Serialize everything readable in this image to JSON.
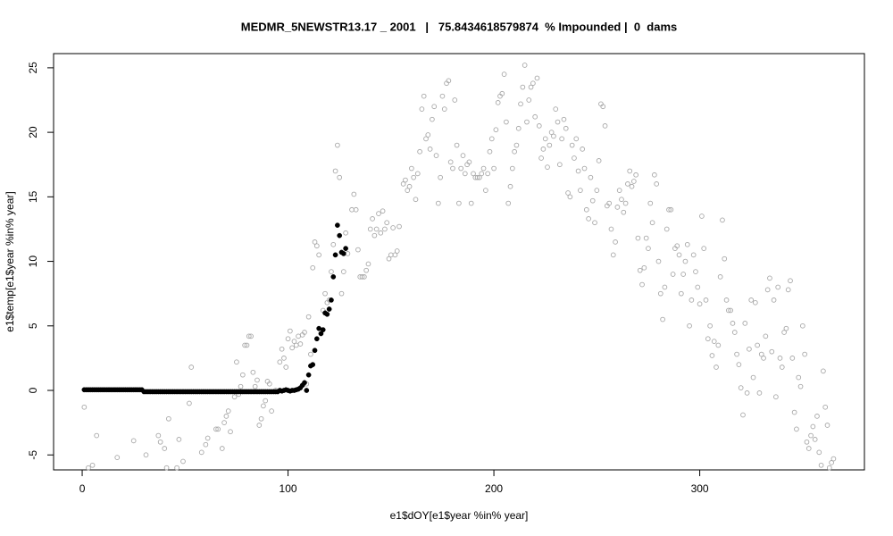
{
  "chart_data": {
    "type": "scatter",
    "title": "MEDMR_5NEWSTR13.17 _ 2001   |   75.8434618579874  % Impounded |  0  dams",
    "xlabel": "e1$dOY[e1$year %in% year]",
    "ylabel": "e1$temp[e1$year %in% year]",
    "xlim": [
      -13.9,
      380
    ],
    "ylim": [
      -6.16,
      26.1
    ],
    "xticks": [
      0,
      100,
      200,
      300
    ],
    "yticks": [
      -5,
      0,
      5,
      10,
      15,
      20,
      25
    ],
    "grid": false,
    "series": [
      {
        "color": "#a8a8a8",
        "marker": "open",
        "x": [
          1,
          3,
          5,
          7,
          17,
          25,
          31,
          37,
          38,
          40,
          41,
          42,
          46,
          47,
          49,
          52,
          53,
          58,
          60,
          61,
          65,
          66,
          68,
          69,
          70,
          71,
          72,
          74,
          75,
          76,
          77,
          78,
          79,
          80,
          81,
          82,
          83,
          84,
          85,
          86,
          87,
          88,
          89,
          90,
          91,
          92,
          94,
          96,
          97,
          98,
          99,
          100,
          101,
          102,
          103,
          104,
          105,
          106,
          107,
          108,
          109,
          110,
          111,
          112,
          113,
          114,
          115,
          117,
          118,
          119,
          120,
          121,
          122,
          123,
          124,
          125,
          126,
          127,
          128,
          129,
          131,
          132,
          133,
          134,
          135,
          136,
          137,
          138,
          139,
          140,
          141,
          142,
          143,
          144,
          145,
          146,
          147,
          148,
          149,
          150,
          151,
          152,
          153,
          154,
          156,
          157,
          158,
          159,
          160,
          161,
          162,
          163,
          164,
          165,
          166,
          167,
          168,
          169,
          170,
          171,
          172,
          173,
          174,
          175,
          176,
          177,
          178,
          179,
          180,
          181,
          182,
          183,
          184,
          185,
          186,
          187,
          188,
          189,
          190,
          191,
          192,
          193,
          194,
          195,
          196,
          197,
          198,
          199,
          200,
          201,
          202,
          203,
          204,
          205,
          206,
          207,
          208,
          209,
          210,
          211,
          212,
          213,
          214,
          215,
          216,
          217,
          218,
          219,
          220,
          221,
          222,
          223,
          224,
          225,
          226,
          227,
          228,
          229,
          230,
          231,
          232,
          233,
          234,
          235,
          236,
          237,
          238,
          239,
          240,
          241,
          242,
          243,
          244,
          245,
          246,
          247,
          248,
          249,
          250,
          251,
          252,
          253,
          254,
          255,
          256,
          257,
          258,
          259,
          260,
          261,
          262,
          263,
          264,
          265,
          266,
          267,
          268,
          269,
          270,
          271,
          272,
          273,
          274,
          275,
          276,
          277,
          278,
          279,
          280,
          281,
          282,
          283,
          284,
          285,
          286,
          287,
          288,
          289,
          290,
          291,
          292,
          293,
          294,
          295,
          296,
          297,
          298,
          299,
          300,
          301,
          302,
          303,
          304,
          305,
          306,
          307,
          308,
          309,
          310,
          311,
          312,
          313,
          314,
          315,
          316,
          317,
          318,
          319,
          320,
          321,
          322,
          323,
          324,
          325,
          326,
          327,
          328,
          329,
          330,
          331,
          332,
          333,
          334,
          335,
          336,
          337,
          338,
          339,
          340,
          341,
          342,
          343,
          344,
          345,
          346,
          347,
          348,
          349,
          350,
          351,
          352,
          353,
          354,
          355,
          356,
          357,
          358,
          359,
          360,
          361,
          362,
          363,
          364,
          365
        ],
        "values": [
          -1.3,
          -6,
          -5.8,
          -3.5,
          -5.2,
          -3.9,
          -5,
          -3.5,
          -4,
          -4.5,
          -6,
          -2.2,
          -6,
          -3.8,
          -5.5,
          -1,
          1.8,
          -4.8,
          -4.2,
          -3.7,
          -3,
          -3,
          -4.5,
          -2.5,
          -2,
          -1.6,
          -3.2,
          -0.5,
          2.2,
          -0.3,
          0.3,
          1.2,
          3.5,
          3.5,
          4.2,
          4.2,
          1.4,
          0.3,
          0.8,
          -2.7,
          -2.2,
          -1.2,
          -0.8,
          0.7,
          0.5,
          -1.6,
          0,
          2.2,
          3.2,
          2.5,
          1.8,
          4,
          4.6,
          3.3,
          3.8,
          3.5,
          4.2,
          3.6,
          4.3,
          4.5,
          0.5,
          5.7,
          2.8,
          9.5,
          11.5,
          11.2,
          10.5,
          6.2,
          7.5,
          6.8,
          7,
          9.2,
          11.3,
          17,
          19,
          16.5,
          7.5,
          9.2,
          12.2,
          10.6,
          14,
          15.2,
          14,
          10.9,
          8.8,
          8.8,
          8.8,
          9.3,
          9.8,
          12.5,
          13.3,
          12,
          12.5,
          13.7,
          12.2,
          13.9,
          12.5,
          13,
          10.2,
          10.5,
          12.6,
          10.5,
          10.8,
          12.7,
          16,
          16.3,
          15.5,
          15.8,
          17.2,
          16.5,
          14.8,
          16.8,
          18.5,
          21.8,
          22.8,
          19.5,
          19.8,
          18.7,
          21,
          22,
          18.2,
          14.5,
          16.5,
          22.8,
          21.8,
          23.8,
          24,
          17.7,
          17.2,
          22.5,
          19,
          14.5,
          17.2,
          18.2,
          16.8,
          17.5,
          17.7,
          14.5,
          16.8,
          16.5,
          16.5,
          16.5,
          16.8,
          17.2,
          15.5,
          16.8,
          18.5,
          19.5,
          17.2,
          20.2,
          22.3,
          22.8,
          23,
          24.5,
          20.8,
          14.5,
          15.8,
          17.2,
          18.5,
          19,
          20.3,
          22.2,
          23.5,
          25.2,
          20.8,
          22.5,
          23.5,
          23.8,
          21.2,
          24.2,
          20.5,
          18,
          18.7,
          19.5,
          17.3,
          19,
          20,
          19.7,
          21.8,
          20.8,
          17.5,
          19.5,
          21,
          20.3,
          15.3,
          15,
          19,
          18,
          19.5,
          17,
          15.5,
          18.7,
          17.2,
          14,
          13.3,
          16.5,
          14.7,
          13,
          15.5,
          17.8,
          22.2,
          22,
          20.5,
          14.3,
          14.5,
          12.5,
          10.5,
          11.5,
          14.2,
          15.5,
          14.8,
          13.8,
          14.5,
          16,
          17,
          15.8,
          16.2,
          16.7,
          11.8,
          9.3,
          8.2,
          9.5,
          11.8,
          11,
          14.5,
          13,
          16.7,
          16,
          10,
          7.5,
          5.5,
          8,
          12.5,
          14,
          14,
          9,
          11,
          11.2,
          10.5,
          7.5,
          9,
          10,
          11.3,
          5,
          7,
          10.5,
          9.2,
          8,
          6.7,
          13.5,
          11,
          7,
          4,
          5,
          2.7,
          3.8,
          1.8,
          3.5,
          8.8,
          13.2,
          10.2,
          7,
          6.2,
          6.2,
          5.2,
          4.5,
          2.8,
          2,
          0.2,
          -1.9,
          5.2,
          -0.2,
          3.2,
          7,
          1,
          6.8,
          3.5,
          -0.2,
          2.8,
          2.5,
          4.2,
          7.8,
          8.7,
          3,
          7,
          -0.5,
          8,
          2.5,
          1.8,
          4.5,
          4.8,
          7.8,
          8.5,
          2.5,
          -1.7,
          -3,
          1,
          0.3,
          5,
          2.8,
          -4,
          -4.5,
          -3.5,
          -2.8,
          -3.8,
          -2,
          -4.8,
          -5.8,
          1.5,
          -1.3,
          -2.7,
          -6,
          -5.6,
          -5.3
        ]
      },
      {
        "color": "#000000",
        "marker": "filled",
        "x": [
          1,
          2,
          3,
          4,
          5,
          6,
          7,
          8,
          9,
          10,
          11,
          12,
          13,
          14,
          15,
          16,
          17,
          18,
          19,
          20,
          21,
          22,
          23,
          24,
          25,
          26,
          27,
          28,
          29,
          30,
          31,
          32,
          33,
          34,
          35,
          36,
          37,
          38,
          39,
          40,
          41,
          42,
          43,
          44,
          45,
          46,
          47,
          48,
          49,
          50,
          51,
          52,
          53,
          54,
          55,
          56,
          57,
          58,
          59,
          60,
          61,
          62,
          63,
          64,
          65,
          66,
          67,
          68,
          69,
          70,
          71,
          72,
          73,
          74,
          75,
          76,
          77,
          78,
          79,
          80,
          81,
          82,
          83,
          84,
          85,
          86,
          87,
          88,
          89,
          90,
          91,
          92,
          93,
          94,
          95,
          96,
          97,
          98,
          99,
          100,
          101,
          102,
          103,
          104,
          105,
          106,
          107,
          108,
          109,
          110,
          111,
          112,
          113,
          114,
          115,
          116,
          117,
          118,
          119,
          120,
          121,
          122,
          123,
          124,
          125,
          126,
          127,
          128
        ],
        "values": [
          0.05,
          0.05,
          0.05,
          0.05,
          0.05,
          0.05,
          0.05,
          0.05,
          0.05,
          0.05,
          0.05,
          0.05,
          0.05,
          0.05,
          0.05,
          0.05,
          0.05,
          0.05,
          0.05,
          0.05,
          0.05,
          0.05,
          0.05,
          0.05,
          0.05,
          0.05,
          0.05,
          0.05,
          0.05,
          -0.1,
          -0.1,
          -0.1,
          -0.1,
          -0.1,
          -0.1,
          -0.1,
          -0.1,
          -0.1,
          -0.1,
          -0.1,
          -0.1,
          -0.1,
          -0.1,
          -0.1,
          -0.1,
          -0.1,
          -0.1,
          -0.1,
          -0.1,
          -0.1,
          -0.1,
          -0.1,
          -0.1,
          -0.1,
          -0.1,
          -0.1,
          -0.1,
          -0.1,
          -0.1,
          -0.1,
          -0.1,
          -0.1,
          -0.1,
          -0.1,
          -0.1,
          -0.1,
          -0.1,
          -0.1,
          -0.1,
          -0.1,
          -0.1,
          -0.1,
          -0.1,
          -0.1,
          -0.1,
          -0.1,
          -0.1,
          -0.1,
          -0.1,
          -0.1,
          -0.1,
          -0.1,
          -0.1,
          -0.1,
          -0.1,
          -0.1,
          -0.1,
          -0.1,
          -0.1,
          -0.1,
          -0.1,
          -0.1,
          -0.1,
          -0.1,
          -0.1,
          0,
          -0.05,
          0,
          0.05,
          0,
          -0.05,
          0,
          0,
          0.05,
          0.1,
          0.2,
          0.4,
          0.6,
          0,
          1.2,
          1.9,
          2,
          3.1,
          4,
          4.8,
          4.4,
          4.7,
          6,
          5.9,
          6.3,
          7,
          8.8,
          10.5,
          12.8,
          12,
          10.7,
          10.6,
          11
        ]
      }
    ]
  }
}
